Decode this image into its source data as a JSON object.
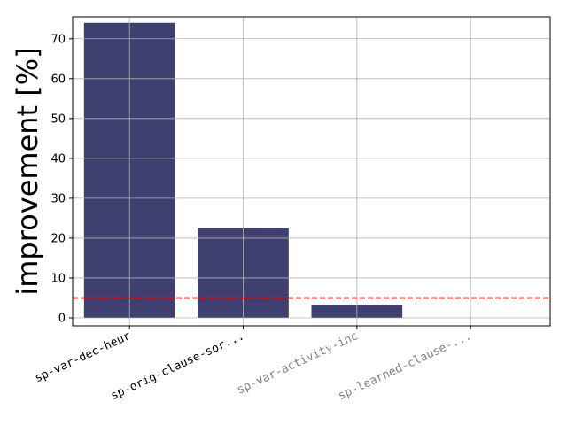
{
  "chart_data": {
    "type": "bar",
    "title": "",
    "xlabel": "",
    "ylabel": "improvement [%]",
    "categories": [
      "sp-var-dec-heur",
      "sp-orig-clause-sor...",
      "sp-var-activity-inc",
      "sp-learned-clause-..."
    ],
    "category_label_colors": [
      "#000000",
      "#000000",
      "#808080",
      "#808080"
    ],
    "values": [
      74.0,
      22.5,
      3.3,
      0.0
    ],
    "ylim": [
      -2,
      75.5
    ],
    "yticks": [
      0,
      10,
      20,
      30,
      40,
      50,
      60,
      70
    ],
    "grid": true,
    "bar_color": "#404070",
    "threshold_line": {
      "value": 5,
      "color": "#ff0000",
      "style": "dashed"
    }
  }
}
